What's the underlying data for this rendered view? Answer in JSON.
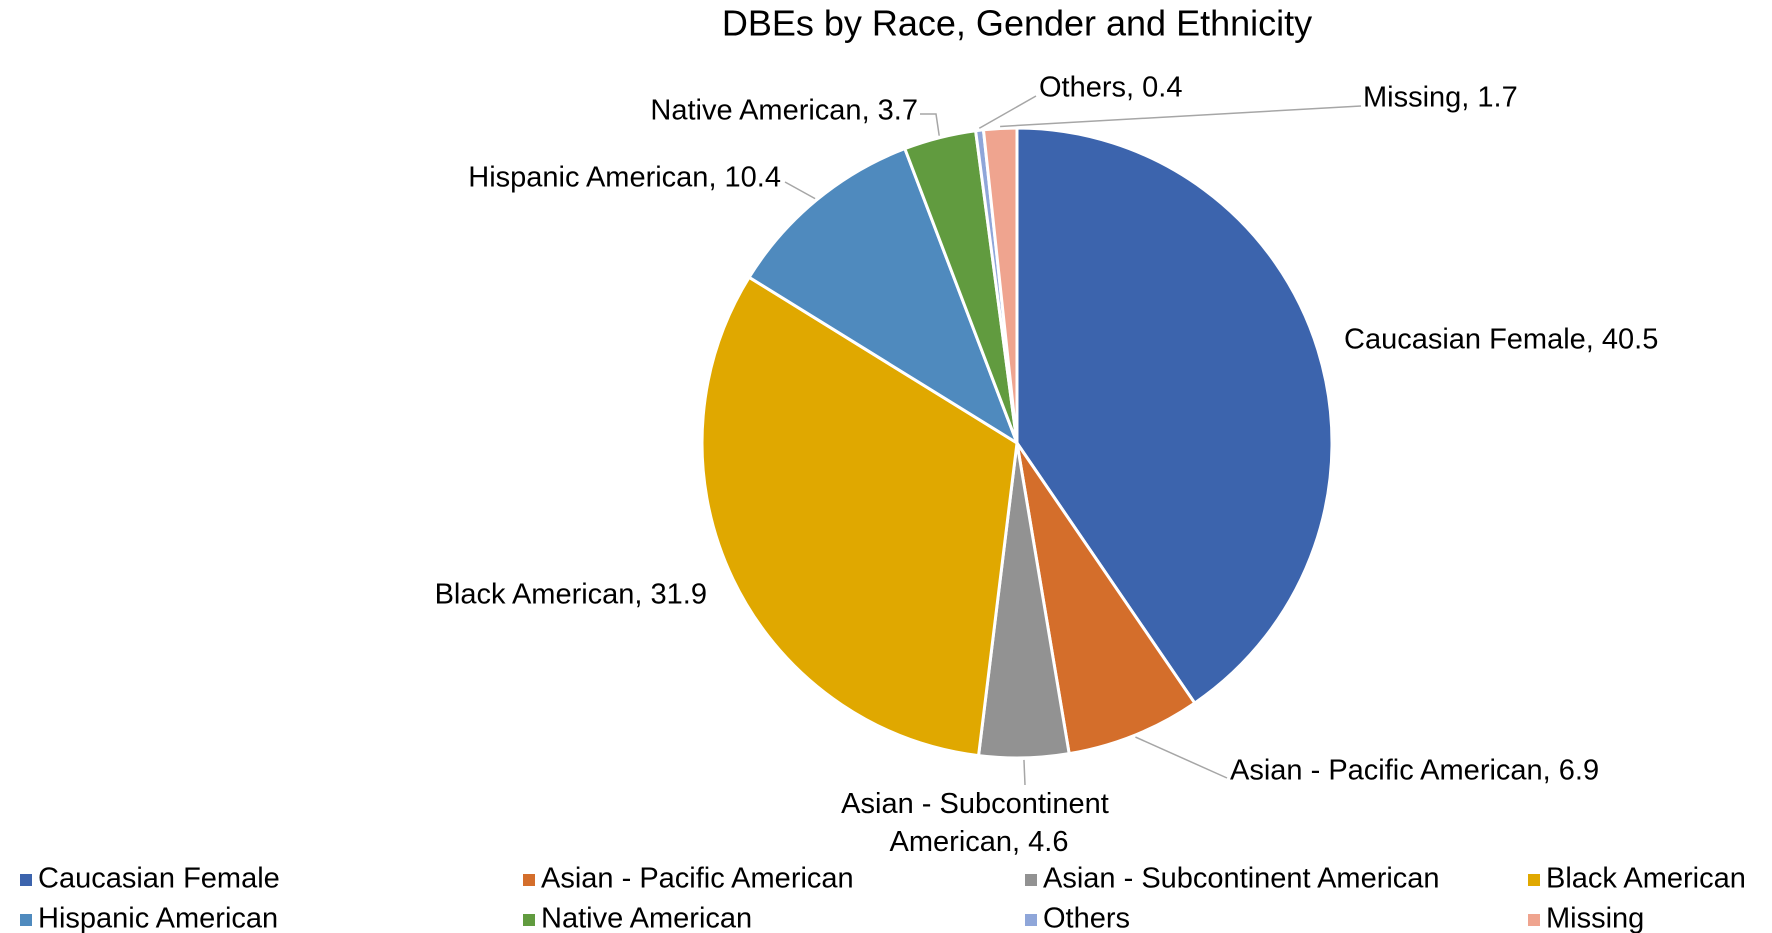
{
  "chart_data": {
    "type": "pie",
    "title": "DBEs by Race, Gender and Ethnicity",
    "categories": [
      "Caucasian Female",
      "Asian - Pacific American",
      "Asian - Subcontinent American",
      "Black American",
      "Hispanic American",
      "Native American",
      "Others",
      "Missing"
    ],
    "values": [
      40.5,
      6.9,
      4.6,
      31.9,
      10.4,
      3.7,
      0.4,
      1.7
    ],
    "value_labels": [
      "Caucasian Female, 40.5",
      "Asian - Pacific American, 6.9",
      "Asian - Subcontinent American, 4.6",
      "Black American, 31.9",
      "Hispanic American, 10.4",
      "Native American, 3.7",
      "Others, 0.4",
      "Missing, 1.7"
    ],
    "colors": [
      "#3c64ad",
      "#d46e2b",
      "#929292",
      "#e0a800",
      "#4f8abe",
      "#619b3f",
      "#8fa6d9",
      "#efa48f"
    ],
    "legend": "bottom"
  }
}
